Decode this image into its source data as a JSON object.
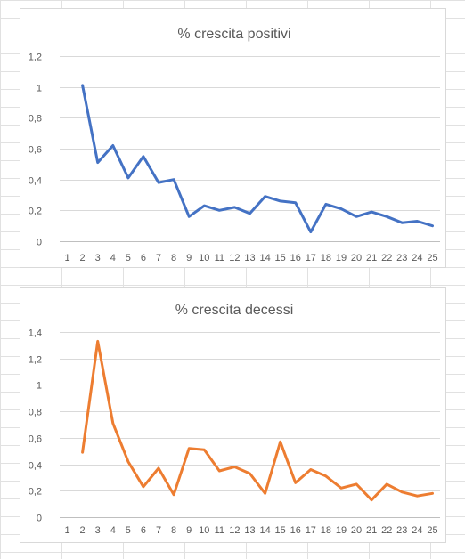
{
  "chart_data": [
    {
      "type": "line",
      "title": "% crescita positivi",
      "xlabel": "",
      "ylabel": "",
      "categories": [
        "1",
        "2",
        "3",
        "4",
        "5",
        "6",
        "7",
        "8",
        "9",
        "10",
        "11",
        "12",
        "13",
        "14",
        "15",
        "16",
        "17",
        "18",
        "19",
        "20",
        "21",
        "22",
        "23",
        "24",
        "25"
      ],
      "ylim": [
        0,
        1.2
      ],
      "y_ticks": [
        "0",
        "0,2",
        "0,4",
        "0,6",
        "0,8",
        "1",
        "1,2"
      ],
      "grid": true,
      "legend": "none",
      "series": [
        {
          "color": "#4472c4",
          "values": [
            null,
            1.01,
            0.51,
            0.62,
            0.41,
            0.55,
            0.38,
            0.4,
            0.16,
            0.23,
            0.2,
            0.22,
            0.18,
            0.29,
            0.26,
            0.25,
            0.06,
            0.24,
            0.21,
            0.16,
            0.19,
            0.16,
            0.12,
            0.13,
            0.1
          ]
        }
      ]
    },
    {
      "type": "line",
      "title": "% crescita decessi",
      "xlabel": "",
      "ylabel": "",
      "categories": [
        "1",
        "2",
        "3",
        "4",
        "5",
        "6",
        "7",
        "8",
        "9",
        "10",
        "11",
        "12",
        "13",
        "14",
        "15",
        "16",
        "17",
        "18",
        "19",
        "20",
        "21",
        "22",
        "23",
        "24",
        "25"
      ],
      "ylim": [
        0,
        1.4
      ],
      "y_ticks": [
        "0",
        "0,2",
        "0,4",
        "0,6",
        "0,8",
        "1",
        "1,2",
        "1,4"
      ],
      "grid": true,
      "legend": "none",
      "series": [
        {
          "color": "#ed7d31",
          "values": [
            null,
            0.49,
            1.33,
            0.71,
            0.42,
            0.23,
            0.37,
            0.17,
            0.52,
            0.51,
            0.35,
            0.38,
            0.33,
            0.18,
            0.57,
            0.26,
            0.36,
            0.31,
            0.22,
            0.25,
            0.13,
            0.25,
            0.19,
            0.16,
            0.18
          ]
        }
      ]
    }
  ]
}
